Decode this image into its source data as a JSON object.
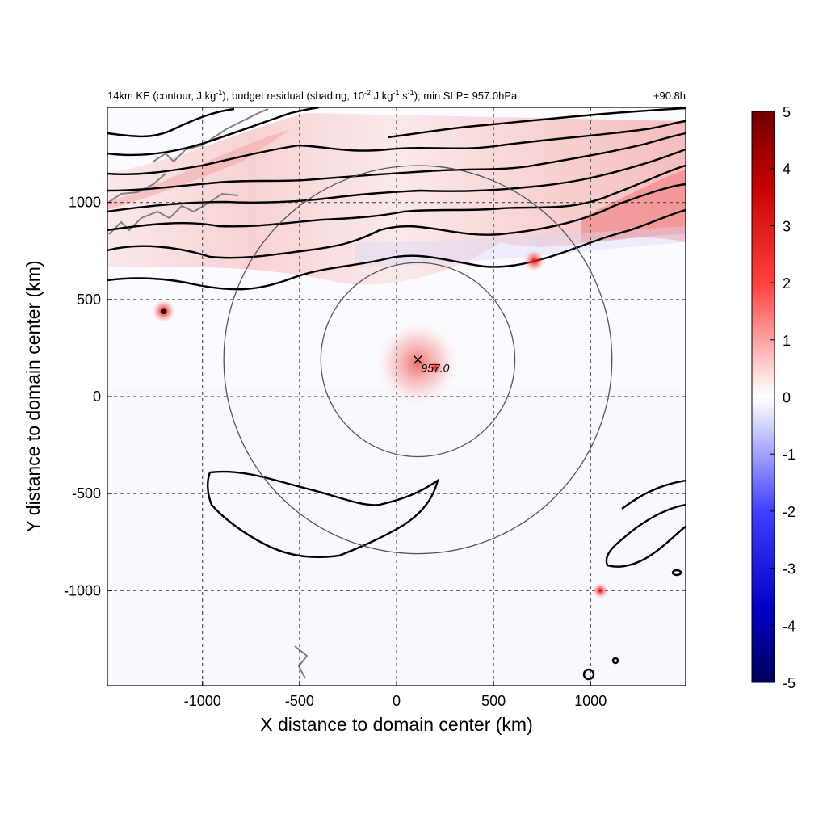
{
  "chart_data": {
    "type": "heatmap",
    "title": {
      "p1": "14km KE (contour, J kg",
      "sup1": "-1",
      "p2": "), budget residual (shading, 10",
      "sup2": "-2",
      "p3": " J kg",
      "sup3": "-1",
      "p4": " s",
      "sup4": "-1",
      "p5": "); min SLP= 957.0hPa"
    },
    "time_label": "+90.8h",
    "xlabel": "X distance to domain center (km)",
    "ylabel": "Y distance to domain center (km)",
    "xlim": [
      -1490,
      1490
    ],
    "ylim": [
      -1490,
      1490
    ],
    "xticks": [
      -1000,
      -500,
      0,
      500,
      1000
    ],
    "yticks": [
      -1000,
      -500,
      0,
      500,
      1000
    ],
    "grid": true,
    "colorbar": {
      "range": [
        -5,
        5
      ],
      "ticks": [
        5,
        4,
        3,
        2,
        1,
        0,
        -1,
        -2,
        -3,
        -4,
        -5
      ],
      "colors": [
        "#00005a",
        "#0000e6",
        "#8c8cff",
        "#ffffff",
        "#ff8c8c",
        "#e60000",
        "#6e0000"
      ]
    },
    "storm_center": {
      "x": 110,
      "y": 190,
      "min_slp_label": "957.0"
    },
    "range_rings_km": [
      500,
      1000
    ],
    "residual_hotspots": [
      {
        "x": -1200,
        "y": 440,
        "value": 4.5
      },
      {
        "x": 710,
        "y": 700,
        "value": 4.0
      },
      {
        "x": 1050,
        "y": -1000,
        "value": 2.5
      },
      {
        "x": 200,
        "y": 150,
        "value": 2.0
      }
    ]
  }
}
